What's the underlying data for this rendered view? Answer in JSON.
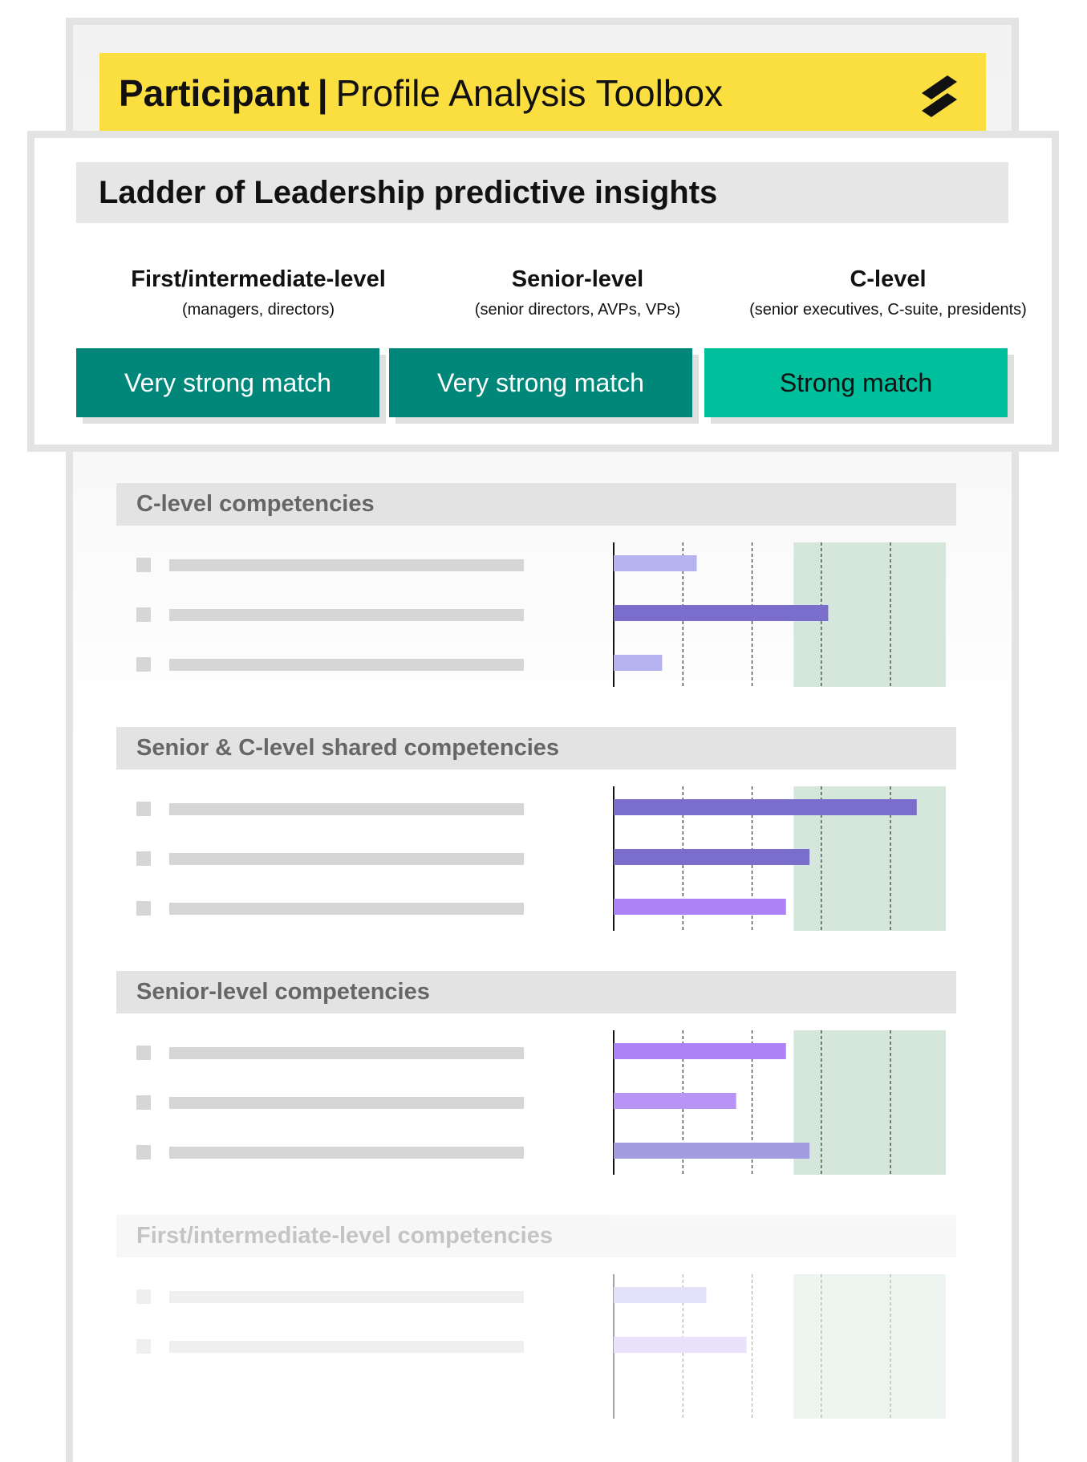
{
  "header": {
    "title_strong": "Participant",
    "title_separator": "|",
    "title_rest": "Profile Analysis Toolbox",
    "logo_icon": "double-slash-logo-icon",
    "background_color": "#fbde3f"
  },
  "insights": {
    "title": "Ladder of Leadership predictive insights",
    "levels": [
      {
        "name": "First/intermediate-level",
        "description": "(managers, directors)",
        "match": "Very strong match",
        "badge_color": "#00877a",
        "text_color": "#ffffff"
      },
      {
        "name": "Senior-level",
        "description": "(senior directors, AVPs, VPs)",
        "match": "Very strong match",
        "badge_color": "#00877a",
        "text_color": "#ffffff"
      },
      {
        "name": "C-level",
        "description": "(senior executives, C-suite, presidents)",
        "match": "Strong match",
        "badge_color": "#00bf9c",
        "text_color": "#111111"
      }
    ]
  },
  "sections": [
    {
      "title": "C-level competencies",
      "bars": [
        {
          "value": 1.2,
          "color": "#b4b3f0"
        },
        {
          "value": 3.1,
          "color": "#7a6dcc"
        },
        {
          "value": 0.7,
          "color": "#b4b3f0"
        }
      ]
    },
    {
      "title": "Senior & C-level shared competencies",
      "bars": [
        {
          "value": 4.38,
          "color": "#7a6dcc"
        },
        {
          "value": 2.83,
          "color": "#7a6dcc"
        },
        {
          "value": 2.49,
          "color": "#ad82f7"
        }
      ]
    },
    {
      "title": "Senior-level competencies",
      "bars": [
        {
          "value": 2.49,
          "color": "#ad82f7"
        },
        {
          "value": 1.77,
          "color": "#b894f7"
        },
        {
          "value": 2.83,
          "color": "#a39ce0"
        }
      ]
    },
    {
      "title": "First/intermediate-level competencies",
      "bars": [
        {
          "value": 1.34,
          "color": "#b4b3f0"
        },
        {
          "value": 1.92,
          "color": "#c9b4f7"
        }
      ]
    }
  ],
  "chart_scale": {
    "max": 4.8,
    "gridlines": [
      1,
      2,
      3,
      4
    ],
    "target_zone": [
      2.6,
      4.8
    ],
    "target_zone_color": "#d5e6da"
  }
}
